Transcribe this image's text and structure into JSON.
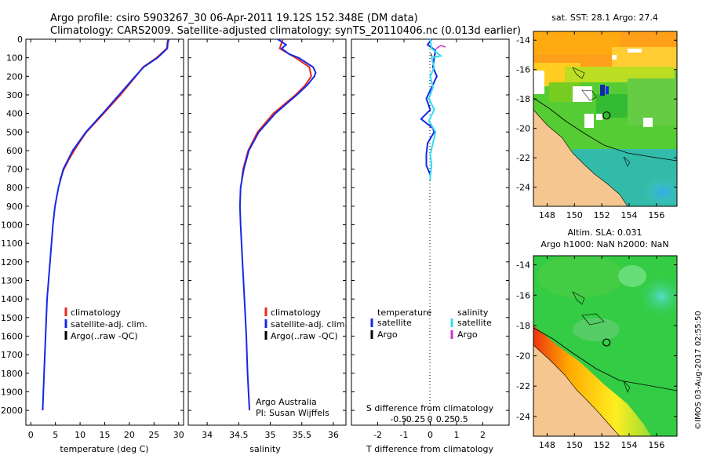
{
  "title_line1": "Argo profile: csiro 5903267_30 06-Apr-2011 19.12S 152.348E (DM data)",
  "title_line2": "Climatology: CARS2009. Satellite-adjusted climatology: synTS_20110406.nc (0.013d earlier)",
  "colors": {
    "climatology": "#e8281e",
    "satellite": "#1428e6",
    "argo": "#000000",
    "sal_sat": "#33ddee",
    "sal_argo": "#cc33cc"
  },
  "chart_data": [
    {
      "type": "line",
      "xlabel": "temperature (deg C)",
      "xlim": [
        -1,
        31
      ],
      "ylim": [
        0,
        2080
      ],
      "xticks": [
        0,
        5,
        10,
        15,
        20,
        25,
        30
      ],
      "yticks": [
        0,
        100,
        200,
        300,
        400,
        500,
        600,
        700,
        800,
        900,
        1000,
        1100,
        1200,
        1300,
        1400,
        1500,
        1600,
        1700,
        1800,
        1900,
        2000
      ],
      "legend": [
        "climatology",
        "satellite-adj. clim.",
        "Argo(..raw -QC)"
      ],
      "series": [
        {
          "name": "climatology",
          "depth": [
            0,
            50,
            100,
            150,
            200,
            300,
            400,
            500,
            550,
            600,
            650,
            700,
            760
          ],
          "values": [
            27.8,
            27.6,
            25.5,
            22.8,
            21.3,
            18.2,
            14.8,
            11.3,
            10.0,
            8.8,
            7.7,
            6.7,
            5.9
          ]
        },
        {
          "name": "satellite-adj. clim.",
          "depth": [
            0,
            20,
            50,
            100,
            150,
            200,
            300,
            400,
            500,
            600,
            700,
            800,
            900,
            1000,
            1200,
            1400,
            1600,
            1800,
            2000
          ],
          "values": [
            28.0,
            27.8,
            27.7,
            25.7,
            22.9,
            21.2,
            17.9,
            14.6,
            11.2,
            8.5,
            6.6,
            5.6,
            4.9,
            4.5,
            3.9,
            3.3,
            3.0,
            2.7,
            2.4
          ]
        }
      ]
    },
    {
      "type": "line",
      "xlabel": "salinity",
      "xlim": [
        33.7,
        36.2
      ],
      "ylim": [
        0,
        2080
      ],
      "xticks": [
        34,
        34.5,
        35,
        35.5,
        36
      ],
      "legend": [
        "climatology",
        "satellite-adj. clim.",
        "Argo(..raw -QC)"
      ],
      "annotation": [
        "Argo Australia",
        "PI: Susan Wijffels"
      ],
      "series": [
        {
          "name": "climatology",
          "depth": [
            0,
            50,
            100,
            150,
            200,
            250,
            300,
            400,
            500,
            600,
            700,
            760
          ],
          "values": [
            35.2,
            35.15,
            35.4,
            35.62,
            35.65,
            35.55,
            35.4,
            35.05,
            34.8,
            34.65,
            34.57,
            34.55
          ]
        },
        {
          "name": "satellite-adj. clim.",
          "depth": [
            0,
            30,
            50,
            80,
            100,
            150,
            180,
            200,
            250,
            300,
            400,
            500,
            600,
            700,
            800,
            900,
            1000,
            1200,
            1400,
            1600,
            1800,
            2000
          ],
          "values": [
            35.12,
            35.25,
            35.18,
            35.3,
            35.45,
            35.68,
            35.72,
            35.7,
            35.58,
            35.42,
            35.08,
            34.82,
            34.66,
            34.58,
            34.53,
            34.52,
            34.53,
            34.56,
            34.59,
            34.62,
            34.64,
            34.67
          ]
        }
      ]
    },
    {
      "type": "line",
      "xlabel": "T difference from climatology",
      "xlabel2": "S difference from climatology",
      "xlim": [
        -3,
        3
      ],
      "ylim": [
        0,
        2080
      ],
      "xticks": [
        -2,
        -1,
        0,
        1,
        2
      ],
      "xticks_top": [
        -0.5,
        -0.25,
        0,
        0.25,
        0.5
      ],
      "legend_headers": [
        "temperature",
        "salinity"
      ],
      "legend_t": [
        "satellite",
        "Argo"
      ],
      "legend_s": [
        "satellite",
        "Argo"
      ],
      "series": [
        {
          "name": "temperature satellite",
          "depth": [
            0,
            30,
            60,
            100,
            150,
            200,
            260,
            320,
            380,
            430,
            480,
            500,
            560,
            620,
            680,
            730,
            760
          ],
          "values": [
            0.05,
            -0.1,
            0.2,
            0.15,
            0.1,
            0.25,
            0.05,
            -0.15,
            0.0,
            -0.35,
            0.1,
            0.15,
            -0.1,
            -0.15,
            -0.15,
            0,
            0
          ]
        },
        {
          "name": "salinity satellite",
          "depth": [
            0,
            50,
            90,
            100,
            150,
            200,
            260,
            320,
            380,
            440,
            500,
            560,
            620,
            680,
            740,
            760
          ],
          "values": [
            0.0,
            0.05,
            0.4,
            0.05,
            0.15,
            0.0,
            0.1,
            -0.05,
            0.15,
            -0.05,
            0.2,
            0.1,
            0.0,
            0.05,
            0.0,
            0.0
          ]
        }
      ]
    },
    {
      "type": "heatmap",
      "title": "sat. SST: 28.1  Argo: 27.4",
      "lon_ticks": [
        148,
        150,
        152,
        154,
        156
      ],
      "lat_ticks": [
        -14,
        -16,
        -18,
        -20,
        -22,
        -24
      ],
      "lonlim": [
        147,
        157.5
      ],
      "latlim": [
        -25.3,
        -13.4
      ],
      "profile": {
        "lon": 152.348,
        "lat": -19.12
      }
    },
    {
      "type": "heatmap",
      "title": [
        "Altim. SLA: 0.031",
        "Argo h1000: NaN h2000: NaN"
      ],
      "lon_ticks": [
        148,
        150,
        152,
        154,
        156
      ],
      "lat_ticks": [
        -14,
        -16,
        -18,
        -20,
        -22,
        -24
      ],
      "lonlim": [
        147,
        157.5
      ],
      "latlim": [
        -25.3,
        -13.4
      ],
      "profile": {
        "lon": 152.348,
        "lat": -19.12
      }
    }
  ],
  "footer_stamp": "©IMOS 03-Aug-2017 02:55:50"
}
